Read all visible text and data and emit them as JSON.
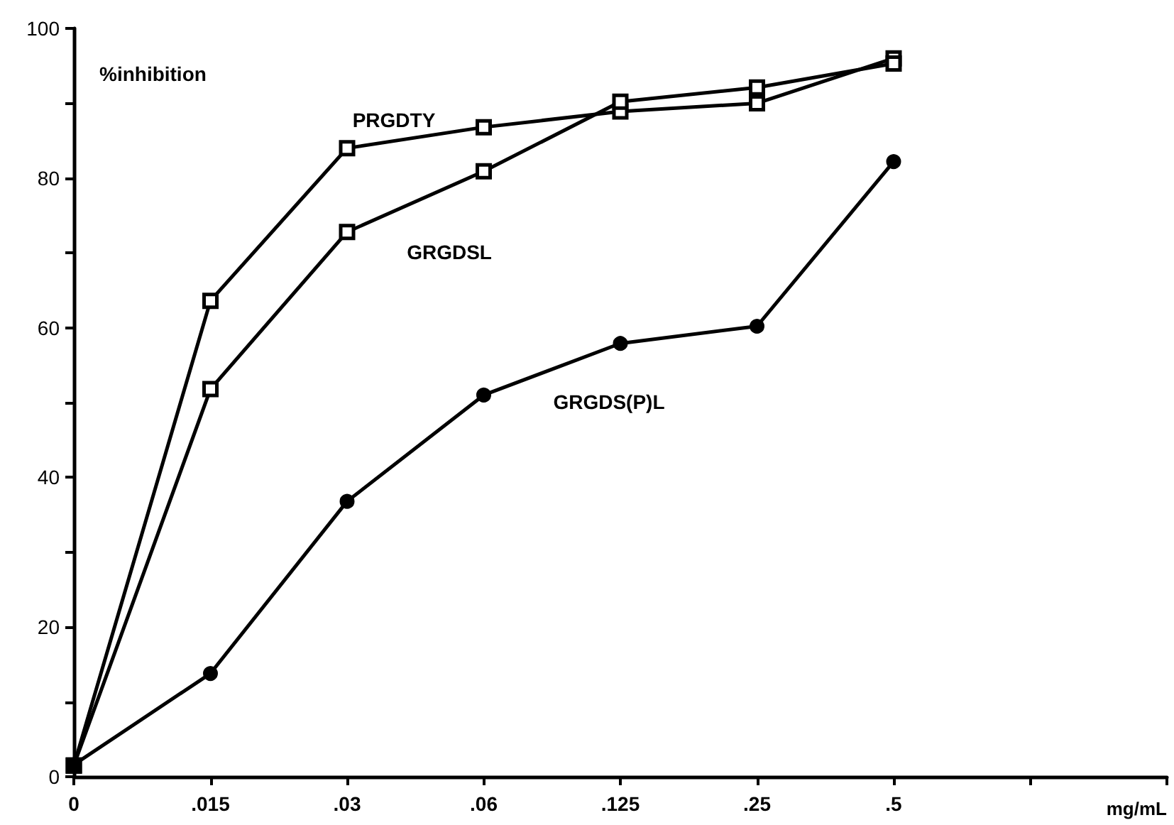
{
  "chart_data": {
    "type": "line",
    "ylabel": "%inhibition",
    "xlabel": "mg/mL",
    "categories": [
      "0",
      ".015",
      ".03",
      ".06",
      ".125",
      ".25",
      ".5",
      null,
      null
    ],
    "series": [
      {
        "name": "PRGDTY",
        "color": "#000000",
        "marker": "square",
        "values": [
          1.5,
          63.6,
          84,
          86.8,
          88.9,
          90,
          96,
          null,
          null
        ]
      },
      {
        "name": "GRGDSL",
        "color": "#000000",
        "marker": "square",
        "values": [
          1.5,
          51.8,
          72.8,
          80.9,
          90.2,
          92.1,
          95.3,
          null,
          null
        ]
      },
      {
        "name": "GRGDS(P)L",
        "color": "#000000",
        "marker": "circle",
        "values": [
          1.6,
          13.8,
          36.8,
          51,
          57.9,
          60.2,
          82.2,
          null,
          null
        ]
      }
    ],
    "ylim": [
      0,
      100
    ],
    "yticks": [
      0,
      {
        "value": 10,
        "label": null
      },
      20,
      {
        "value": 30,
        "label": null
      },
      40,
      {
        "value": 50,
        "label": null
      },
      60,
      {
        "value": 70,
        "label": null
      },
      80,
      {
        "value": 90,
        "label": null
      },
      100
    ],
    "line_style": "solid"
  }
}
